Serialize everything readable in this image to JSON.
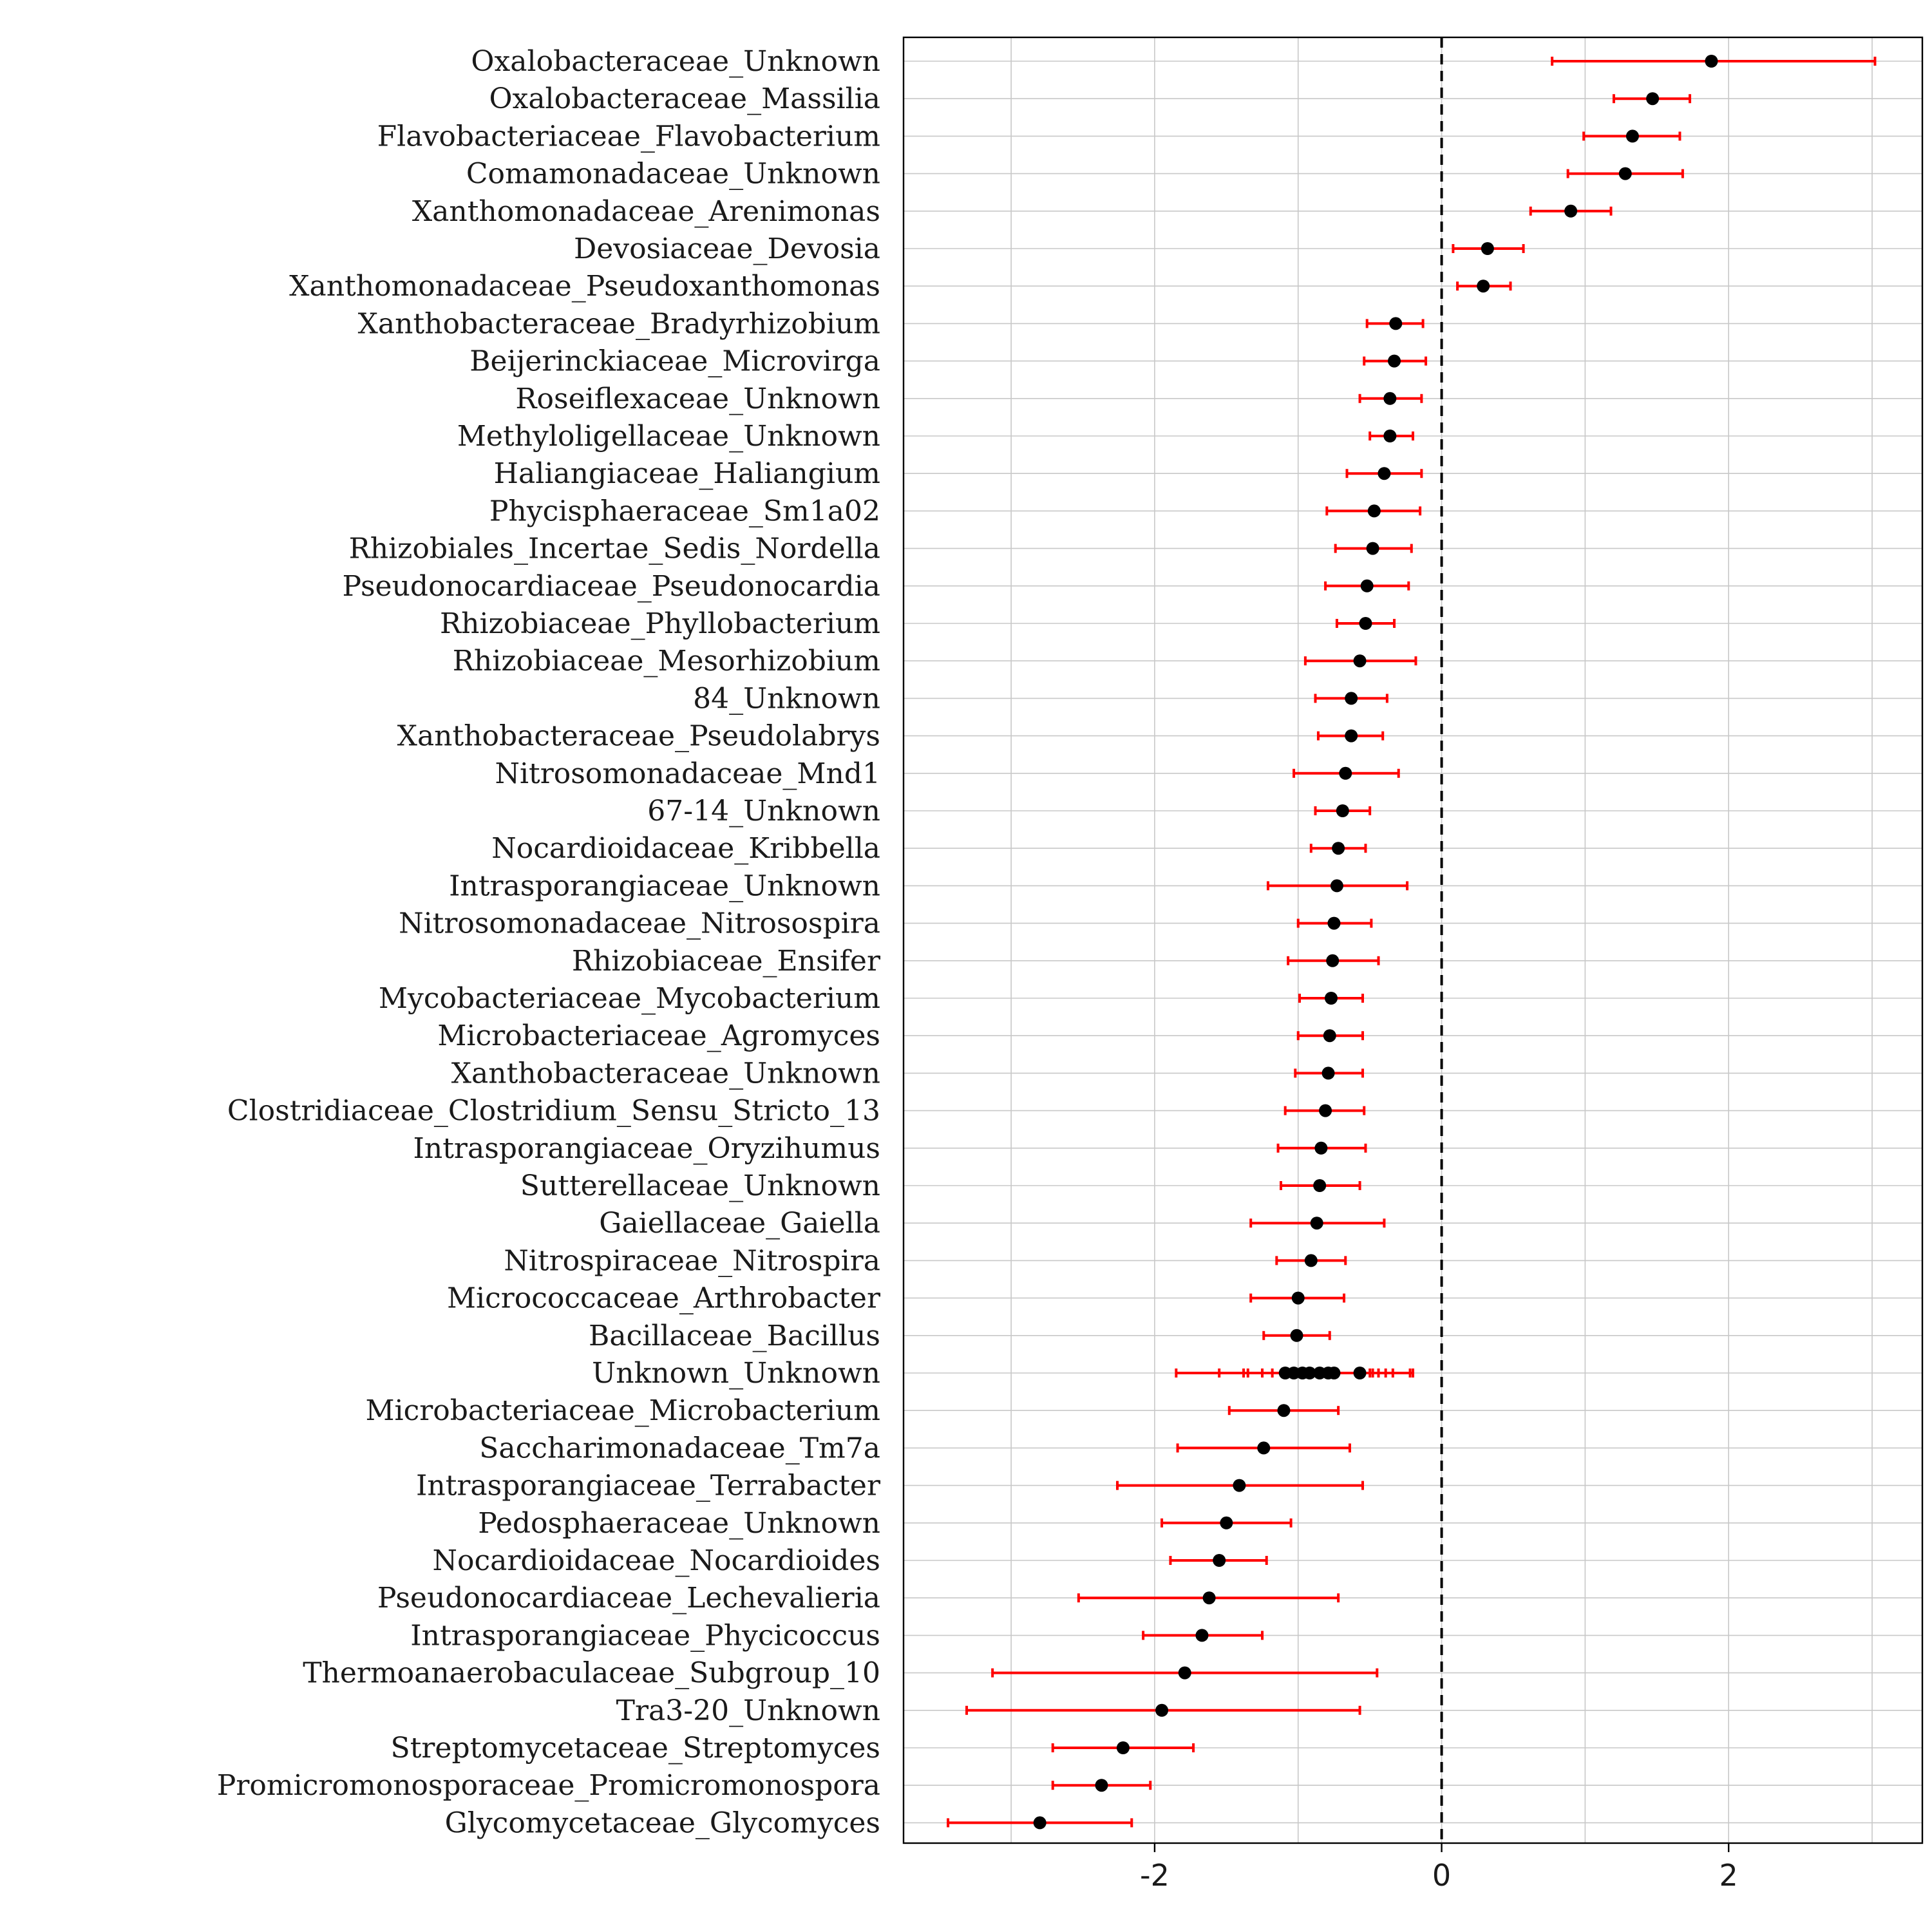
{
  "chart_data": {
    "type": "scatter",
    "title": "",
    "xlabel": "",
    "ylabel": "",
    "xlim": [
      -3.75,
      3.35
    ],
    "x_ticks": [
      -2,
      0,
      2
    ],
    "x_tick_labels": [
      "-2",
      "0",
      "2"
    ],
    "grid": true,
    "reference_line_x": 0,
    "colors": {
      "point": "#000000",
      "error_bar": "#ff0000",
      "grid": "#c8c8c8"
    },
    "categories": [
      "Oxalobacteraceae_Unknown",
      "Oxalobacteraceae_Massilia",
      "Flavobacteriaceae_Flavobacterium",
      "Comamonadaceae_Unknown",
      "Xanthomonadaceae_Arenimonas",
      "Devosiaceae_Devosia",
      "Xanthomonadaceae_Pseudoxanthomonas",
      "Xanthobacteraceae_Bradyrhizobium",
      "Beijerinckiaceae_Microvirga",
      "Roseiflexaceae_Unknown",
      "Methyloligellaceae_Unknown",
      "Haliangiaceae_Haliangium",
      "Phycisphaeraceae_Sm1a02",
      "Rhizobiales_Incertae_Sedis_Nordella",
      "Pseudonocardiaceae_Pseudonocardia",
      "Rhizobiaceae_Phyllobacterium",
      "Rhizobiaceae_Mesorhizobium",
      "84_Unknown",
      "Xanthobacteraceae_Pseudolabrys",
      "Nitrosomonadaceae_Mnd1",
      "67-14_Unknown",
      "Nocardioidaceae_Kribbella",
      "Intrasporangiaceae_Unknown",
      "Nitrosomonadaceae_Nitrosospira",
      "Rhizobiaceae_Ensifer",
      "Mycobacteriaceae_Mycobacterium",
      "Microbacteriaceae_Agromyces",
      "Xanthobacteraceae_Unknown",
      "Clostridiaceae_Clostridium_Sensu_Stricto_13",
      "Intrasporangiaceae_Oryzihumus",
      "Sutterellaceae_Unknown",
      "Gaiellaceae_Gaiella",
      "Nitrospiraceae_Nitrospira",
      "Micrococcaceae_Arthrobacter",
      "Bacillaceae_Bacillus",
      "Unknown_Unknown",
      "Microbacteriaceae_Microbacterium",
      "Saccharimonadaceae_Tm7a",
      "Intrasporangiaceae_Terrabacter",
      "Pedosphaeraceae_Unknown",
      "Nocardioidaceae_Nocardioides",
      "Pseudonocardiaceae_Lechevalieria",
      "Intrasporangiaceae_Phycicoccus",
      "Thermoanaerobaculaceae_Subgroup_10",
      "Tra3-20_Unknown",
      "Streptomycetaceae_Streptomyces",
      "Promicromonosporaceae_Promicromonospora",
      "Glycomycetaceae_Glycomyces"
    ],
    "points": [
      {
        "row": 0,
        "x": 1.88,
        "lo": 0.77,
        "hi": 3.02
      },
      {
        "row": 1,
        "x": 1.47,
        "lo": 1.2,
        "hi": 1.73
      },
      {
        "row": 2,
        "x": 1.33,
        "lo": 0.99,
        "hi": 1.66
      },
      {
        "row": 3,
        "x": 1.28,
        "lo": 0.88,
        "hi": 1.68
      },
      {
        "row": 4,
        "x": 0.9,
        "lo": 0.62,
        "hi": 1.18
      },
      {
        "row": 5,
        "x": 0.32,
        "lo": 0.08,
        "hi": 0.57
      },
      {
        "row": 6,
        "x": 0.29,
        "lo": 0.11,
        "hi": 0.48
      },
      {
        "row": 7,
        "x": -0.32,
        "lo": -0.52,
        "hi": -0.13
      },
      {
        "row": 8,
        "x": -0.33,
        "lo": -0.54,
        "hi": -0.11
      },
      {
        "row": 9,
        "x": -0.36,
        "lo": -0.57,
        "hi": -0.14
      },
      {
        "row": 10,
        "x": -0.36,
        "lo": -0.5,
        "hi": -0.2
      },
      {
        "row": 11,
        "x": -0.4,
        "lo": -0.66,
        "hi": -0.14
      },
      {
        "row": 12,
        "x": -0.47,
        "lo": -0.8,
        "hi": -0.15
      },
      {
        "row": 13,
        "x": -0.48,
        "lo": -0.74,
        "hi": -0.21
      },
      {
        "row": 14,
        "x": -0.52,
        "lo": -0.81,
        "hi": -0.23
      },
      {
        "row": 15,
        "x": -0.53,
        "lo": -0.73,
        "hi": -0.33
      },
      {
        "row": 16,
        "x": -0.57,
        "lo": -0.95,
        "hi": -0.18
      },
      {
        "row": 17,
        "x": -0.63,
        "lo": -0.88,
        "hi": -0.38
      },
      {
        "row": 18,
        "x": -0.63,
        "lo": -0.86,
        "hi": -0.41
      },
      {
        "row": 19,
        "x": -0.67,
        "lo": -1.03,
        "hi": -0.3
      },
      {
        "row": 20,
        "x": -0.69,
        "lo": -0.88,
        "hi": -0.5
      },
      {
        "row": 21,
        "x": -0.72,
        "lo": -0.91,
        "hi": -0.53
      },
      {
        "row": 22,
        "x": -0.73,
        "lo": -1.21,
        "hi": -0.24
      },
      {
        "row": 23,
        "x": -0.75,
        "lo": -1.0,
        "hi": -0.49
      },
      {
        "row": 24,
        "x": -0.76,
        "lo": -1.07,
        "hi": -0.44
      },
      {
        "row": 25,
        "x": -0.77,
        "lo": -0.99,
        "hi": -0.55
      },
      {
        "row": 26,
        "x": -0.78,
        "lo": -1.0,
        "hi": -0.55
      },
      {
        "row": 27,
        "x": -0.79,
        "lo": -1.02,
        "hi": -0.55
      },
      {
        "row": 28,
        "x": -0.81,
        "lo": -1.09,
        "hi": -0.54
      },
      {
        "row": 29,
        "x": -0.84,
        "lo": -1.14,
        "hi": -0.53
      },
      {
        "row": 30,
        "x": -0.85,
        "lo": -1.12,
        "hi": -0.57
      },
      {
        "row": 31,
        "x": -0.87,
        "lo": -1.33,
        "hi": -0.4
      },
      {
        "row": 32,
        "x": -0.91,
        "lo": -1.15,
        "hi": -0.67
      },
      {
        "row": 33,
        "x": -1.0,
        "lo": -1.33,
        "hi": -0.68
      },
      {
        "row": 34,
        "x": -1.01,
        "lo": -1.24,
        "hi": -0.78
      },
      {
        "row": 35,
        "x": -1.09,
        "lo": -1.85,
        "hi": -0.22
      },
      {
        "row": 35,
        "x": -1.03,
        "lo": -1.55,
        "hi": -0.5
      },
      {
        "row": 35,
        "x": -0.97,
        "lo": -1.38,
        "hi": -0.57
      },
      {
        "row": 35,
        "x": -0.92,
        "lo": -1.35,
        "hi": -0.48
      },
      {
        "row": 35,
        "x": -0.85,
        "lo": -1.25,
        "hi": -0.44
      },
      {
        "row": 35,
        "x": -0.79,
        "lo": -1.18,
        "hi": -0.39
      },
      {
        "row": 35,
        "x": -0.75,
        "lo": -1.1,
        "hi": -0.34
      },
      {
        "row": 35,
        "x": -0.57,
        "lo": -0.95,
        "hi": -0.2
      },
      {
        "row": 36,
        "x": -1.1,
        "lo": -1.48,
        "hi": -0.72
      },
      {
        "row": 37,
        "x": -1.24,
        "lo": -1.84,
        "hi": -0.64
      },
      {
        "row": 38,
        "x": -1.41,
        "lo": -2.26,
        "hi": -0.55
      },
      {
        "row": 39,
        "x": -1.5,
        "lo": -1.95,
        "hi": -1.05
      },
      {
        "row": 40,
        "x": -1.55,
        "lo": -1.89,
        "hi": -1.22
      },
      {
        "row": 41,
        "x": -1.62,
        "lo": -2.53,
        "hi": -0.72
      },
      {
        "row": 42,
        "x": -1.67,
        "lo": -2.08,
        "hi": -1.25
      },
      {
        "row": 43,
        "x": -1.79,
        "lo": -3.13,
        "hi": -0.45
      },
      {
        "row": 44,
        "x": -1.95,
        "lo": -3.31,
        "hi": -0.57
      },
      {
        "row": 45,
        "x": -2.22,
        "lo": -2.71,
        "hi": -1.73
      },
      {
        "row": 46,
        "x": -2.37,
        "lo": -2.71,
        "hi": -2.03
      },
      {
        "row": 47,
        "x": -2.8,
        "lo": -3.44,
        "hi": -2.16
      }
    ]
  }
}
